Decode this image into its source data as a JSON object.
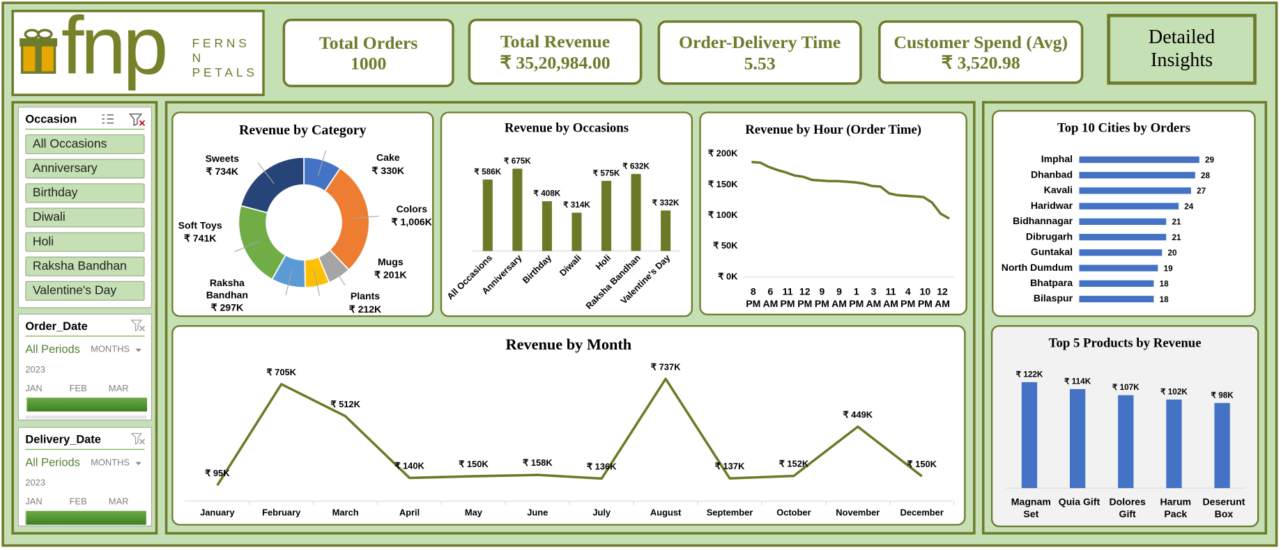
{
  "logo": {
    "brand": "fnp",
    "lines": [
      "FERNS",
      "N",
      "PETALS"
    ]
  },
  "kpis": [
    {
      "title": "Total Orders",
      "value": 1000
    },
    {
      "title": "Total Revenue",
      "value": "₹ 35,20,984.00"
    },
    {
      "title": "Order-Delivery Time",
      "value": 5.53
    },
    {
      "title": "Customer Spend (Avg)",
      "value": "₹ 3,520.98"
    }
  ],
  "button": "Detailed Insights",
  "slicers": {
    "occasion": {
      "title": "Occasion",
      "items": [
        "All Occasions",
        "Anniversary",
        "Birthday",
        "Diwali",
        "Holi",
        "Raksha Bandhan",
        "Valentine's Day"
      ]
    },
    "order_date": {
      "title": "Order_Date",
      "selection": "All Periods",
      "level": "MONTHS",
      "year": "2023",
      "months": [
        "JAN",
        "FEB",
        "MAR"
      ]
    },
    "delivery_date": {
      "title": "Delivery_Date",
      "selection": "All Periods",
      "level": "MONTHS",
      "year": "2023",
      "months": [
        "JAN",
        "FEB",
        "MAR"
      ]
    }
  },
  "chart_data": [
    {
      "type": "donut",
      "title": "Revenue by Category",
      "categories": [
        "Cake",
        "Colors",
        "Mugs",
        "Plants",
        "Raksha Bandhan",
        "Soft Toys",
        "Sweets"
      ],
      "values": [
        330,
        1006,
        201,
        212,
        297,
        741,
        734
      ],
      "value_labels": [
        "₹ 330K",
        "₹ 1,006K",
        "₹ 201K",
        "₹ 212K",
        "₹ 297K",
        "₹ 741K",
        "₹ 734K"
      ],
      "colors": [
        "#4472c4",
        "#ed7d31",
        "#a5a5a5",
        "#ffc000",
        "#5b9bd5",
        "#70ad47",
        "#264478"
      ]
    },
    {
      "type": "bar",
      "title": "Revenue by Occasions",
      "categories": [
        "All Occasions",
        "Anniversary",
        "Birthday",
        "Diwali",
        "Holi",
        "Raksha Bandhan",
        "Valentine's Day"
      ],
      "values": [
        586,
        675,
        408,
        314,
        575,
        632,
        332
      ],
      "value_labels": [
        "₹ 586K",
        "₹ 675K",
        "₹ 408K",
        "₹ 314K",
        "₹ 575K",
        "₹ 632K",
        "₹ 332K"
      ],
      "color": "#6b7a26"
    },
    {
      "type": "line",
      "title": "Revenue by Hour (Order Time)",
      "categories": [
        "8 PM",
        null,
        "6 AM",
        null,
        "11 PM",
        null,
        "12 PM",
        null,
        "9 PM",
        null,
        "9 AM",
        null,
        "1 PM",
        null,
        "3 AM",
        null,
        "11 AM",
        null,
        "4 PM",
        null,
        "10 PM",
        null,
        "12 AM",
        null
      ],
      "values": [
        187,
        186,
        179,
        174,
        170,
        165,
        163,
        158,
        157,
        156,
        156,
        155,
        154,
        152,
        148,
        147,
        136,
        133,
        132,
        131,
        130,
        121,
        103,
        95
      ],
      "color": "#6b7a26",
      "ylim": [
        0,
        200
      ],
      "yticks": [
        {
          "value": 0,
          "label": "₹ 0K"
        },
        {
          "value": 50,
          "label": "₹ 50K"
        },
        {
          "value": 100,
          "label": "₹ 100K"
        },
        {
          "value": 150,
          "label": "₹ 150K"
        },
        {
          "value": 200,
          "label": "₹ 200K"
        }
      ]
    },
    {
      "type": "barh",
      "title": "Top 10 Cities by Orders",
      "categories": [
        "Imphal",
        "Dhanbad",
        "Kavali",
        "Haridwar",
        "Bidhannagar",
        "Dibrugarh",
        "Guntakal",
        "North Dumdum",
        "Bhatpara",
        "Bilaspur"
      ],
      "values": [
        29,
        28,
        27,
        24,
        21,
        21,
        20,
        19,
        18,
        18
      ],
      "color": "#4472c4"
    },
    {
      "type": "line",
      "title": "Revenue by Month",
      "categories": [
        "January",
        "February",
        "March",
        "April",
        "May",
        "June",
        "July",
        "August",
        "September",
        "October",
        "November",
        "December"
      ],
      "values": [
        95,
        705,
        512,
        140,
        150,
        158,
        136,
        737,
        137,
        152,
        449,
        150
      ],
      "value_labels": [
        "₹ 95K",
        "₹ 705K",
        "₹ 512K",
        "₹ 140K",
        "₹ 150K",
        "₹ 158K",
        "₹ 136K",
        "₹ 737K",
        "₹ 137K",
        "₹ 152K",
        "₹ 449K",
        "₹ 150K"
      ],
      "color": "#6b7a26"
    },
    {
      "type": "bar",
      "title": "Top 5 Products by Revenue",
      "categories": [
        "Magnam Set",
        "Quia Gift",
        "Dolores Gift",
        "Harum Pack",
        "Deserunt Box"
      ],
      "values": [
        122,
        114,
        107,
        102,
        98
      ],
      "value_labels": [
        "₹ 122K",
        "₹ 114K",
        "₹ 107K",
        "₹ 102K",
        "₹ 98K"
      ],
      "color": "#4472c4"
    }
  ]
}
